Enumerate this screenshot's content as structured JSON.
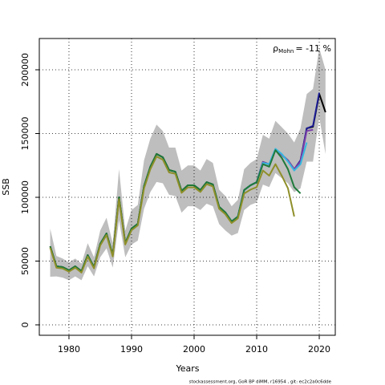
{
  "chart_data": {
    "type": "line",
    "xlabel": "Years",
    "ylabel": "SSB",
    "annotation": {
      "symbol": "ρ",
      "subscript": "Mohn",
      "text": "= -11 %"
    },
    "footer": "stockassessment.org, GoR BP diMM, r16954 , git: ec2c2a0c6dde",
    "x": [
      1977,
      1978,
      1979,
      1980,
      1981,
      1982,
      1983,
      1984,
      1985,
      1986,
      1987,
      1988,
      1989,
      1990,
      1991,
      1992,
      1993,
      1994,
      1995,
      1996,
      1997,
      1998,
      1999,
      2000,
      2001,
      2002,
      2003,
      2004,
      2005,
      2006,
      2007,
      2008,
      2009,
      2010,
      2011,
      2012,
      2013,
      2014,
      2015,
      2016,
      2017,
      2018,
      2019,
      2020,
      2021
    ],
    "band": {
      "color": "#bebebe",
      "upper": [
        75500,
        54000,
        52000,
        49000,
        52000,
        48000,
        64000,
        53000,
        74000,
        84000,
        64000,
        122000,
        74000,
        90000,
        94000,
        129000,
        146000,
        157000,
        152000,
        139000,
        139000,
        121000,
        125000,
        125000,
        121000,
        130000,
        127000,
        106000,
        101000,
        93000,
        98000,
        122000,
        127000,
        130000,
        149000,
        146000,
        160000,
        155000,
        150000,
        143000,
        154000,
        181000,
        185000,
        217000,
        200000
      ],
      "lower": [
        37700,
        38000,
        37000,
        35000,
        38000,
        35000,
        46000,
        38000,
        53000,
        60000,
        45000,
        82000,
        53000,
        63000,
        66000,
        91000,
        104000,
        112000,
        111000,
        102000,
        101000,
        88000,
        93000,
        93000,
        90000,
        95000,
        93000,
        79000,
        74000,
        70000,
        72000,
        90000,
        94000,
        96000,
        110000,
        108000,
        119000,
        115000,
        111000,
        104000,
        107000,
        128000,
        128000,
        163000,
        134000
      ]
    },
    "series": [
      {
        "color": "#000000",
        "values": [
          61600,
          45900,
          45300,
          42800,
          45900,
          42100,
          54700,
          45300,
          63500,
          71700,
          54700,
          100000,
          64100,
          75500,
          79200,
          108800,
          123900,
          134000,
          131400,
          121400,
          120100,
          105000,
          109400,
          109400,
          105700,
          111900,
          110100,
          92500,
          88100,
          81100,
          84900,
          105700,
          109400,
          111900,
          127700,
          125800,
          137700,
          133300,
          128900,
          122000,
          127700,
          154100,
          155300,
          181100,
          166700
        ]
      },
      {
        "color": "#1c1c94",
        "values": [
          null,
          null,
          null,
          null,
          null,
          null,
          null,
          null,
          null,
          null,
          null,
          null,
          null,
          null,
          null,
          null,
          null,
          null,
          null,
          null,
          null,
          null,
          null,
          null,
          null,
          null,
          null,
          null,
          88100,
          81100,
          84900,
          105700,
          109400,
          111900,
          127700,
          125800,
          137700,
          133300,
          128900,
          122000,
          129000,
          154000,
          156000,
          182000,
          null
        ]
      },
      {
        "color": "#7b3fa8",
        "values": [
          null,
          null,
          null,
          null,
          null,
          null,
          null,
          null,
          null,
          null,
          null,
          null,
          null,
          null,
          null,
          null,
          null,
          null,
          null,
          null,
          null,
          null,
          null,
          null,
          null,
          null,
          null,
          null,
          88100,
          81100,
          84900,
          105700,
          109400,
          111900,
          127700,
          125800,
          137700,
          133300,
          128900,
          122000,
          128000,
          152000,
          153000,
          null,
          null
        ]
      },
      {
        "color": "#35b8e0",
        "values": [
          null,
          null,
          null,
          null,
          null,
          null,
          null,
          null,
          null,
          null,
          null,
          null,
          null,
          null,
          null,
          null,
          null,
          null,
          null,
          null,
          null,
          null,
          null,
          null,
          null,
          null,
          null,
          null,
          88100,
          81100,
          84900,
          105700,
          109400,
          111900,
          127000,
          126000,
          138000,
          134000,
          128000,
          121000,
          126000,
          143000,
          null,
          null,
          null
        ]
      },
      {
        "color": "#1f7a3a",
        "values": [
          61600,
          45900,
          45300,
          42800,
          45900,
          42100,
          54700,
          45300,
          63500,
          71700,
          54700,
          100000,
          64100,
          75500,
          79200,
          108800,
          123900,
          134000,
          131400,
          121400,
          120100,
          105000,
          109400,
          109400,
          105700,
          111900,
          110100,
          92500,
          88100,
          81100,
          84900,
          105700,
          109400,
          111900,
          126000,
          124000,
          137000,
          131000,
          122000,
          108000,
          103000,
          null,
          null,
          null,
          null
        ]
      },
      {
        "color": "#8f8f2a",
        "values": [
          60500,
          44800,
          44200,
          41700,
          44800,
          41000,
          53500,
          44300,
          62300,
          70400,
          53600,
          98500,
          63000,
          74200,
          78000,
          107000,
          122000,
          132000,
          129500,
          119500,
          118500,
          103500,
          107800,
          107800,
          104200,
          110300,
          108500,
          91000,
          86700,
          79800,
          83500,
          103000,
          106000,
          108000,
          121000,
          117000,
          126000,
          117000,
          107000,
          85000,
          null,
          null,
          null,
          null,
          null
        ]
      }
    ],
    "xlim": [
      1975.26,
      2022.56
    ],
    "ylim": [
      -8176,
      224528
    ],
    "xticks": [
      1980,
      1990,
      2000,
      2010,
      2020
    ],
    "yticks": [
      0,
      50000,
      100000,
      150000,
      200000
    ],
    "grid": true
  }
}
